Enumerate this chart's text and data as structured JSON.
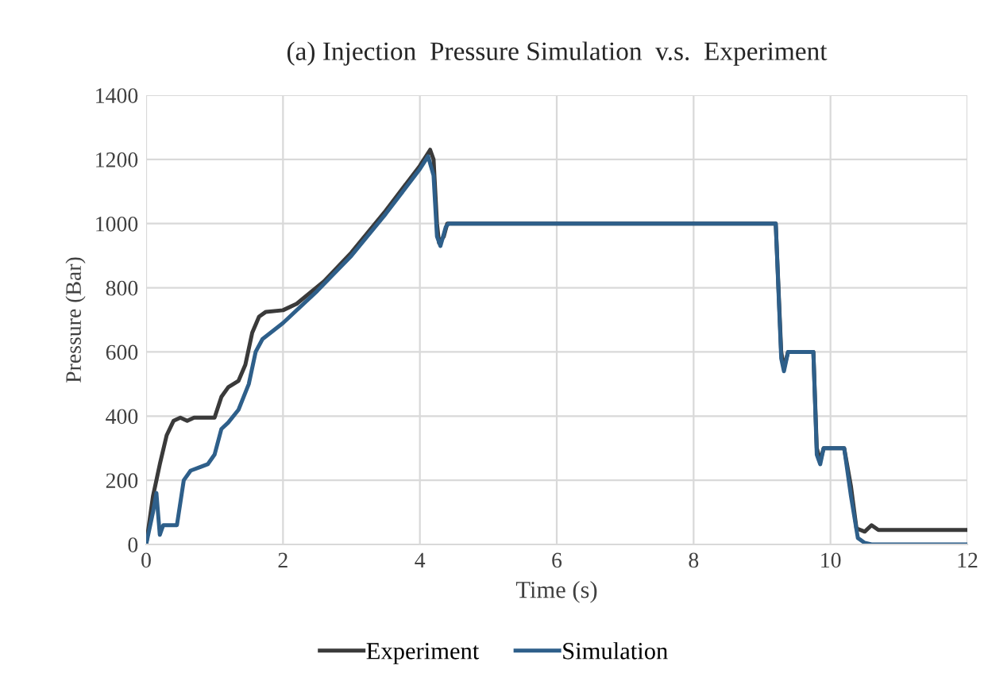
{
  "chart_data": {
    "type": "line",
    "title": "(a) Injection  Pressure Simulation  v.s.  Experiment",
    "xlabel": "Time (s)",
    "ylabel": "Pressure (Bar)",
    "xlim": [
      0,
      12
    ],
    "xticks": [
      0,
      2,
      4,
      6,
      8,
      10,
      12
    ],
    "ylim": [
      0,
      1400
    ],
    "yticks": [
      0,
      200,
      400,
      600,
      800,
      1000,
      1200,
      1400
    ],
    "grid": true,
    "legend": "bottom",
    "marker": "none",
    "line_style": "solid",
    "series": [
      {
        "name": "Experiment",
        "color": "#3a3a3a",
        "x": [
          0,
          0.1,
          0.2,
          0.3,
          0.4,
          0.5,
          0.6,
          0.7,
          1.0,
          1.1,
          1.2,
          1.35,
          1.45,
          1.55,
          1.65,
          1.75,
          2.0,
          2.2,
          2.6,
          3.0,
          3.5,
          4.0,
          4.15,
          4.2,
          4.25,
          4.28,
          4.35,
          4.4,
          6,
          9.2,
          9.28,
          9.32,
          9.38,
          9.75,
          9.8,
          9.85,
          9.9,
          10.2,
          10.3,
          10.38,
          10.5,
          10.6,
          10.7,
          12
        ],
        "values": [
          0,
          150,
          250,
          340,
          385,
          395,
          385,
          395,
          395,
          460,
          490,
          510,
          560,
          660,
          710,
          725,
          730,
          750,
          820,
          910,
          1040,
          1180,
          1230,
          1200,
          1000,
          940,
          960,
          1000,
          1000,
          1000,
          600,
          550,
          600,
          600,
          300,
          260,
          300,
          300,
          180,
          50,
          40,
          60,
          45,
          45
        ]
      },
      {
        "name": "Simulation",
        "color": "#2e5f8a",
        "x": [
          0,
          0.1,
          0.15,
          0.2,
          0.25,
          0.45,
          0.55,
          0.65,
          0.9,
          1.0,
          1.1,
          1.2,
          1.35,
          1.5,
          1.6,
          1.7,
          2.0,
          2.5,
          3.0,
          3.5,
          4.0,
          4.12,
          4.2,
          4.25,
          4.3,
          4.38,
          4.42,
          9.2,
          9.28,
          9.32,
          9.38,
          9.75,
          9.8,
          9.85,
          9.9,
          10.2,
          10.3,
          10.4,
          10.5,
          10.6,
          12
        ],
        "values": [
          0,
          100,
          160,
          30,
          60,
          60,
          200,
          230,
          250,
          280,
          360,
          380,
          420,
          500,
          600,
          640,
          690,
          790,
          900,
          1030,
          1170,
          1210,
          1150,
          960,
          930,
          990,
          1000,
          1000,
          580,
          540,
          600,
          600,
          280,
          250,
          300,
          300,
          150,
          20,
          5,
          0,
          0
        ]
      }
    ]
  }
}
